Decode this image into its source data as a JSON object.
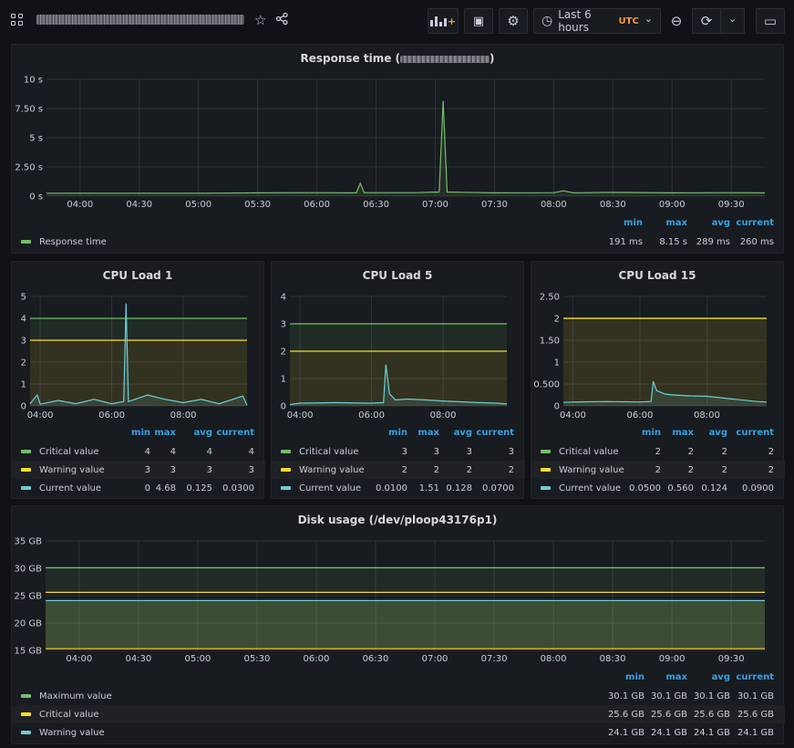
{
  "toolbar": {
    "time_range": "Last 6 hours",
    "timezone": "UTC",
    "icons": [
      "grid-icon",
      "star-icon",
      "share-icon",
      "add-panel-icon",
      "save-icon",
      "gear-icon",
      "clock-icon",
      "chevron-down-icon",
      "zoom-out-icon",
      "refresh-icon",
      "tv-icon"
    ],
    "star_glyph": "☆",
    "share_glyph": "⋖",
    "gear_glyph": "⚙",
    "clock_glyph": "◷",
    "zoom_glyph": "⊖",
    "refresh_glyph": "⟳",
    "chevron_glyph": "⌄",
    "tv_glyph": "▭",
    "save_glyph": "▣"
  },
  "colors": {
    "green": "#73bf69",
    "yellow": "#fade2a",
    "cyan": "#6ccfd8",
    "blue_header": "#33a2e5",
    "orange": "#ff9830"
  },
  "legend_headers": [
    "min",
    "max",
    "avg",
    "current"
  ],
  "panels": {
    "response": {
      "title_prefix": "Response time (",
      "title_suffix": ")",
      "legend": [
        {
          "name": "Response time",
          "color": "#73bf69",
          "min": "191 ms",
          "max": "8.15 s",
          "avg": "289 ms",
          "current": "260 ms"
        }
      ]
    },
    "cpu1": {
      "title": "CPU Load 1",
      "legend": [
        {
          "name": "Critical value",
          "color": "#73bf69",
          "min": "4",
          "max": "4",
          "avg": "4",
          "current": "4"
        },
        {
          "name": "Warning value",
          "color": "#fade2a",
          "min": "3",
          "max": "3",
          "avg": "3",
          "current": "3"
        },
        {
          "name": "Current value",
          "color": "#6ccfd8",
          "min": "0",
          "max": "4.68",
          "avg": "0.125",
          "current": "0.0300"
        }
      ]
    },
    "cpu5": {
      "title": "CPU Load 5",
      "legend": [
        {
          "name": "Critical value",
          "color": "#73bf69",
          "min": "3",
          "max": "3",
          "avg": "3",
          "current": "3"
        },
        {
          "name": "Warning value",
          "color": "#fade2a",
          "min": "2",
          "max": "2",
          "avg": "2",
          "current": "2"
        },
        {
          "name": "Current value",
          "color": "#6ccfd8",
          "min": "0.0100",
          "max": "1.51",
          "avg": "0.128",
          "current": "0.0700"
        }
      ]
    },
    "cpu15": {
      "title": "CPU Load 15",
      "legend": [
        {
          "name": "Critical value",
          "color": "#73bf69",
          "min": "2",
          "max": "2",
          "avg": "2",
          "current": "2"
        },
        {
          "name": "Warning value",
          "color": "#fade2a",
          "min": "2",
          "max": "2",
          "avg": "2",
          "current": "2"
        },
        {
          "name": "Current value",
          "color": "#6ccfd8",
          "min": "0.0500",
          "max": "0.560",
          "avg": "0.124",
          "current": "0.0900"
        }
      ]
    },
    "disk": {
      "title": "Disk usage (/dev/ploop43176p1)",
      "legend": [
        {
          "name": "Maximum value",
          "color": "#73bf69",
          "min": "30.1 GB",
          "max": "30.1 GB",
          "avg": "30.1 GB",
          "current": "30.1 GB"
        },
        {
          "name": "Critical value",
          "color": "#fade2a",
          "min": "25.6 GB",
          "max": "25.6 GB",
          "avg": "25.6 GB",
          "current": "25.6 GB"
        },
        {
          "name": "Warning value",
          "color": "#6ccfd8",
          "min": "24.1 GB",
          "max": "24.1 GB",
          "avg": "24.1 GB",
          "current": "24.1 GB"
        }
      ]
    }
  },
  "chart_data": [
    {
      "id": "response",
      "type": "line",
      "title": "Response time ( )",
      "x_ticks": [
        "04:00",
        "04:30",
        "05:00",
        "05:30",
        "06:00",
        "06:30",
        "07:00",
        "07:30",
        "08:00",
        "08:30",
        "09:00",
        "09:30"
      ],
      "xlim": [
        "03:43",
        "09:47"
      ],
      "y_ticks": [
        "0 s",
        "2.50 s",
        "5 s",
        "7.50 s",
        "10 s"
      ],
      "ylim": [
        0,
        10
      ],
      "series": [
        {
          "name": "Response time",
          "color": "#73bf69",
          "points": [
            [
              "03:43",
              0.25
            ],
            [
              "04:00",
              0.25
            ],
            [
              "05:00",
              0.25
            ],
            [
              "05:30",
              0.28
            ],
            [
              "06:00",
              0.3
            ],
            [
              "06:20",
              0.28
            ],
            [
              "06:22",
              1.1
            ],
            [
              "06:24",
              0.3
            ],
            [
              "06:50",
              0.3
            ],
            [
              "07:02",
              0.35
            ],
            [
              "07:04",
              8.15
            ],
            [
              "07:06",
              0.35
            ],
            [
              "07:30",
              0.28
            ],
            [
              "08:00",
              0.3
            ],
            [
              "08:05",
              0.45
            ],
            [
              "08:10",
              0.28
            ],
            [
              "08:30",
              0.32
            ],
            [
              "09:00",
              0.28
            ],
            [
              "09:30",
              0.3
            ],
            [
              "09:47",
              0.28
            ]
          ]
        }
      ]
    },
    {
      "id": "cpu1",
      "type": "line",
      "title": "CPU Load 1",
      "x_ticks": [
        "04:00",
        "06:00",
        "08:00"
      ],
      "xlim": [
        "03:43",
        "09:47"
      ],
      "y_ticks": [
        "0",
        "1",
        "2",
        "3",
        "4",
        "5"
      ],
      "ylim": [
        0,
        5
      ],
      "series": [
        {
          "name": "Critical value",
          "color": "#73bf69",
          "points": [
            [
              "03:43",
              4
            ],
            [
              "09:47",
              4
            ]
          ]
        },
        {
          "name": "Warning value",
          "color": "#fade2a",
          "points": [
            [
              "03:43",
              3
            ],
            [
              "09:47",
              3
            ]
          ]
        },
        {
          "name": "Current value",
          "color": "#6ccfd8",
          "points": [
            [
              "03:43",
              0.1
            ],
            [
              "03:55",
              0.5
            ],
            [
              "04:00",
              0.08
            ],
            [
              "04:30",
              0.25
            ],
            [
              "05:00",
              0.1
            ],
            [
              "05:30",
              0.3
            ],
            [
              "06:00",
              0.1
            ],
            [
              "06:20",
              0.2
            ],
            [
              "06:24",
              4.68
            ],
            [
              "06:28",
              0.2
            ],
            [
              "07:00",
              0.5
            ],
            [
              "07:30",
              0.3
            ],
            [
              "08:00",
              0.15
            ],
            [
              "08:30",
              0.3
            ],
            [
              "09:00",
              0.1
            ],
            [
              "09:40",
              0.45
            ],
            [
              "09:47",
              0.03
            ]
          ]
        }
      ]
    },
    {
      "id": "cpu5",
      "type": "line",
      "title": "CPU Load 5",
      "x_ticks": [
        "04:00",
        "06:00",
        "08:00"
      ],
      "xlim": [
        "03:43",
        "09:47"
      ],
      "y_ticks": [
        "0",
        "1",
        "2",
        "3",
        "4"
      ],
      "ylim": [
        0,
        4
      ],
      "series": [
        {
          "name": "Critical value",
          "color": "#73bf69",
          "points": [
            [
              "03:43",
              3
            ],
            [
              "09:47",
              3
            ]
          ]
        },
        {
          "name": "Warning value",
          "color": "#fade2a",
          "points": [
            [
              "03:43",
              2
            ],
            [
              "09:47",
              2
            ]
          ]
        },
        {
          "name": "Current value",
          "color": "#6ccfd8",
          "points": [
            [
              "03:43",
              0.05
            ],
            [
              "04:00",
              0.1
            ],
            [
              "05:00",
              0.12
            ],
            [
              "06:00",
              0.1
            ],
            [
              "06:20",
              0.12
            ],
            [
              "06:24",
              1.51
            ],
            [
              "06:30",
              0.45
            ],
            [
              "06:40",
              0.22
            ],
            [
              "07:00",
              0.25
            ],
            [
              "07:30",
              0.22
            ],
            [
              "08:00",
              0.18
            ],
            [
              "08:30",
              0.15
            ],
            [
              "09:00",
              0.12
            ],
            [
              "09:30",
              0.1
            ],
            [
              "09:47",
              0.07
            ]
          ]
        }
      ]
    },
    {
      "id": "cpu15",
      "type": "line",
      "title": "CPU Load 15",
      "x_ticks": [
        "04:00",
        "06:00",
        "08:00"
      ],
      "xlim": [
        "03:43",
        "09:47"
      ],
      "y_ticks": [
        "0",
        "0.500",
        "1",
        "1.50",
        "2",
        "2.50"
      ],
      "ylim": [
        0,
        2.5
      ],
      "series": [
        {
          "name": "Critical value",
          "color": "#73bf69",
          "points": [
            [
              "03:43",
              2
            ],
            [
              "09:47",
              2
            ]
          ]
        },
        {
          "name": "Warning value",
          "color": "#fade2a",
          "points": [
            [
              "03:43",
              2
            ],
            [
              "09:47",
              2
            ]
          ]
        },
        {
          "name": "Current value",
          "color": "#6ccfd8",
          "points": [
            [
              "03:43",
              0.08
            ],
            [
              "04:00",
              0.09
            ],
            [
              "05:00",
              0.1
            ],
            [
              "06:00",
              0.09
            ],
            [
              "06:20",
              0.1
            ],
            [
              "06:24",
              0.56
            ],
            [
              "06:30",
              0.35
            ],
            [
              "06:45",
              0.27
            ],
            [
              "07:00",
              0.25
            ],
            [
              "07:30",
              0.23
            ],
            [
              "08:00",
              0.22
            ],
            [
              "08:30",
              0.18
            ],
            [
              "09:00",
              0.14
            ],
            [
              "09:30",
              0.1
            ],
            [
              "09:47",
              0.09
            ]
          ]
        }
      ]
    },
    {
      "id": "disk",
      "type": "area",
      "title": "Disk usage (/dev/ploop43176p1)",
      "x_ticks": [
        "04:00",
        "04:30",
        "05:00",
        "05:30",
        "06:00",
        "06:30",
        "07:00",
        "07:30",
        "08:00",
        "08:30",
        "09:00",
        "09:30"
      ],
      "xlim": [
        "03:43",
        "09:47"
      ],
      "y_ticks": [
        "15 GB",
        "20 GB",
        "25 GB",
        "30 GB",
        "35 GB"
      ],
      "ylim": [
        15,
        35
      ],
      "series": [
        {
          "name": "Maximum value",
          "color": "#73bf69",
          "points": [
            [
              "03:43",
              30.1
            ],
            [
              "09:47",
              30.1
            ]
          ]
        },
        {
          "name": "Critical value",
          "color": "#fade2a",
          "points": [
            [
              "03:43",
              25.6
            ],
            [
              "09:47",
              25.6
            ]
          ]
        },
        {
          "name": "Warning value",
          "color": "#6ccfd8",
          "points": [
            [
              "03:43",
              24.1
            ],
            [
              "09:47",
              24.1
            ]
          ]
        },
        {
          "name": "",
          "color": "#fade2a",
          "points": [
            [
              "03:43",
              15.3
            ],
            [
              "09:47",
              15.3
            ]
          ]
        }
      ]
    }
  ]
}
